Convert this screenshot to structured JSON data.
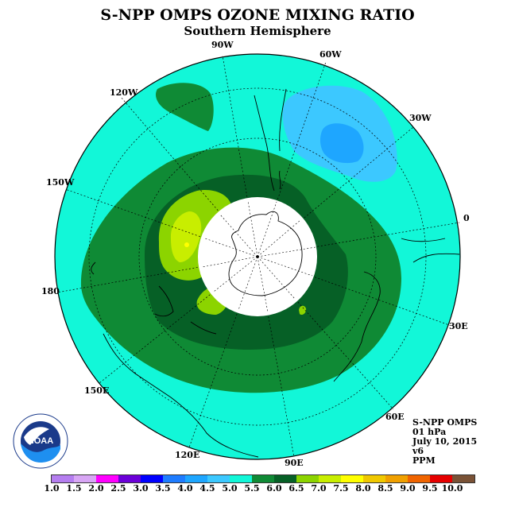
{
  "title": "S-NPP OMPS OZONE MIXING RATIO",
  "subtitle": "Southern Hemisphere",
  "longitude_labels": [
    "90W",
    "60W",
    "30W",
    "0",
    "30E",
    "60E",
    "90E",
    "120E",
    "150E",
    "180",
    "150W",
    "120W"
  ],
  "info": {
    "instrument": "S-NPP OMPS",
    "level": "01 hPa",
    "date": "July 10, 2015",
    "version": "v6",
    "units": "PPM"
  },
  "logo_text": "NOAA",
  "colorbar": {
    "ticks": [
      "1.0",
      "1.5",
      "2.0",
      "2.5",
      "3.0",
      "3.5",
      "4.0",
      "4.5",
      "5.0",
      "5.5",
      "6.0",
      "6.5",
      "7.0",
      "7.5",
      "8.0",
      "8.5",
      "9.0",
      "9.5",
      "10.0"
    ],
    "colors": [
      "#b57ef0",
      "#d8a6f5",
      "#ff00ff",
      "#6b00d8",
      "#0000ff",
      "#1e7cff",
      "#1ea6ff",
      "#3cc8ff",
      "#12f7d8",
      "#0f8a35",
      "#066026",
      "#8cd400",
      "#c8ee00",
      "#ffff00",
      "#f0c800",
      "#f0a000",
      "#f06400",
      "#e60000",
      "#7a5236"
    ]
  }
}
